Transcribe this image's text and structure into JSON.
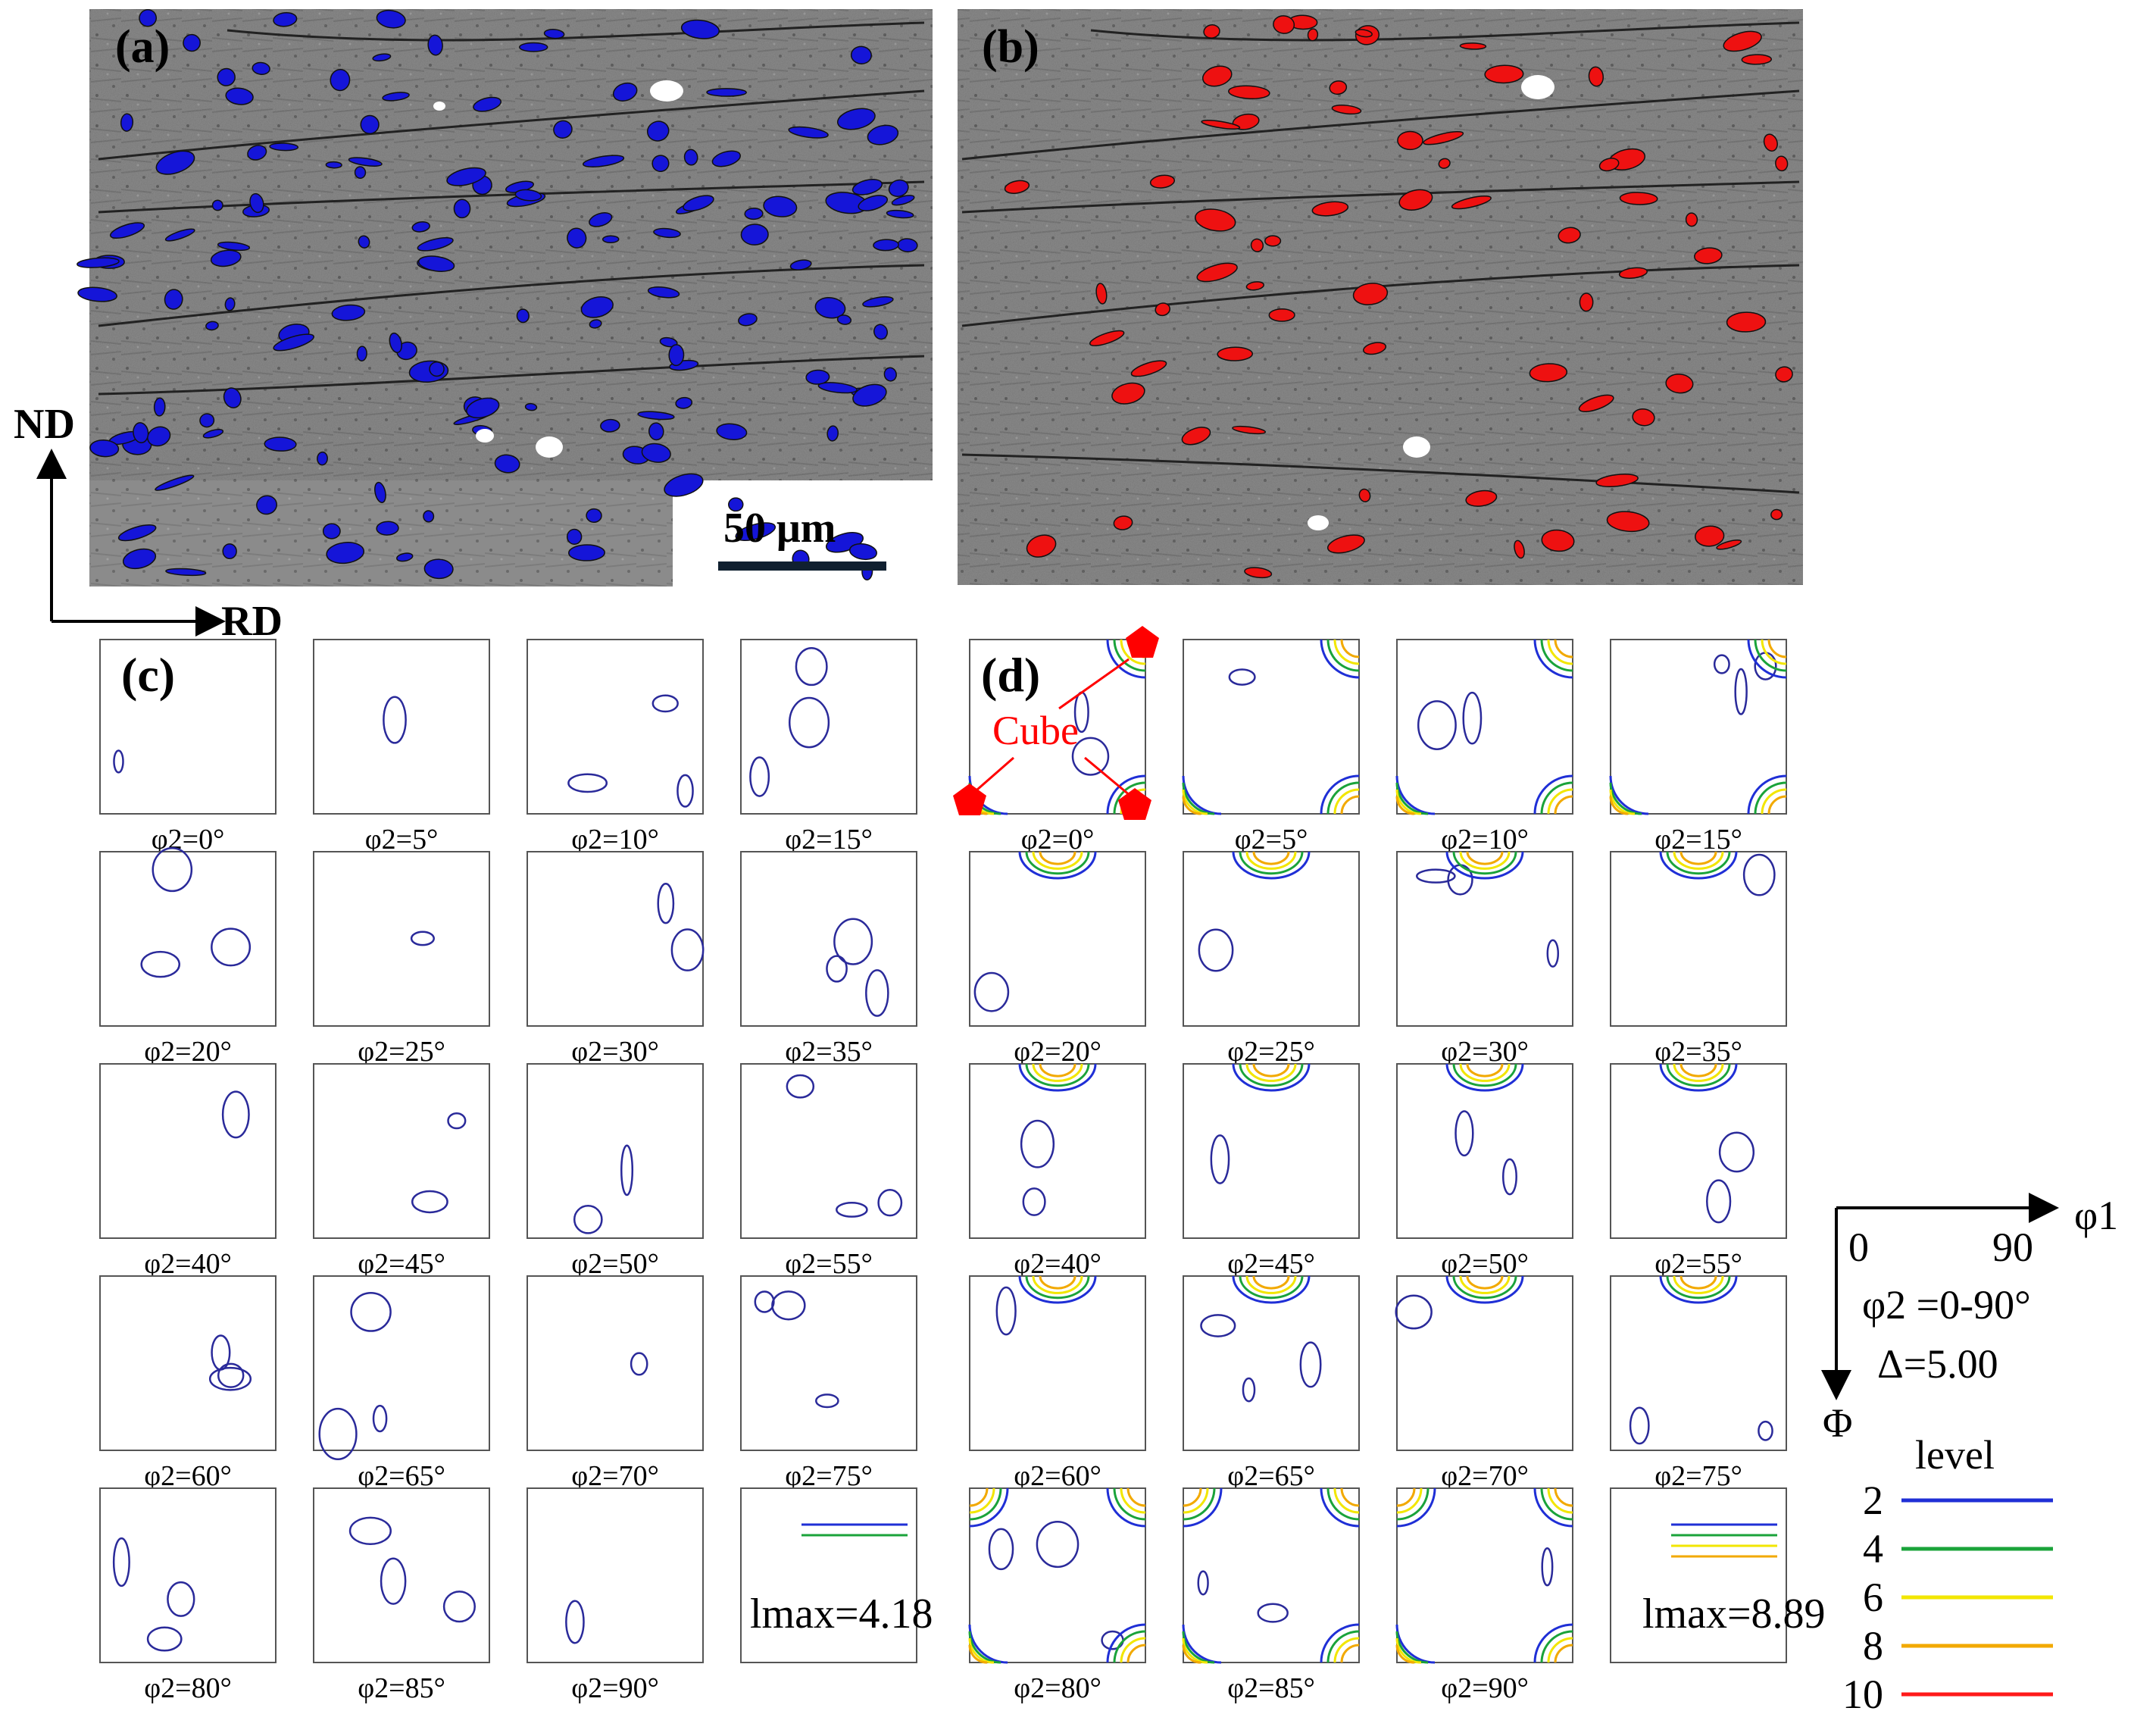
{
  "panels": {
    "a": "(a)",
    "b": "(b)",
    "c": "(c)",
    "d": "(d)"
  },
  "scale_bar": "50 μm",
  "axes": {
    "nd": "ND",
    "rd": "RD"
  },
  "cube_label": "Cube",
  "section_labels": [
    "φ2=0°",
    "φ2=5°",
    "φ2=10°",
    "φ2=15°",
    "φ2=20°",
    "φ2=25°",
    "φ2=30°",
    "φ2=35°",
    "φ2=40°",
    "φ2=45°",
    "φ2=50°",
    "φ2=55°",
    "φ2=60°",
    "φ2=65°",
    "φ2=70°",
    "φ2=75°",
    "φ2=80°",
    "φ2=85°",
    "φ2=90°"
  ],
  "lmax_c": "lmax=4.18",
  "lmax_d": "lmax=8.89",
  "odf_axis": {
    "phi1": "φ1",
    "zero": "0",
    "ninety": "90",
    "phi2_range": "φ2 =0-90°",
    "delta": "Δ=5.00",
    "Phi": "Φ"
  },
  "legend": {
    "title": "level",
    "levels": [
      {
        "value": "2",
        "color": "#1f2fd6"
      },
      {
        "value": "4",
        "color": "#1aa33a"
      },
      {
        "value": "6",
        "color": "#f2e600"
      },
      {
        "value": "8",
        "color": "#f2a900"
      },
      {
        "value": "10",
        "color": "#ff1a1a"
      }
    ]
  },
  "colors": {
    "blue_grains": "#1515d8",
    "red_grains": "#ee1111",
    "contour_blue": "#2a2a9a",
    "contour_green": "#1aa33a"
  }
}
